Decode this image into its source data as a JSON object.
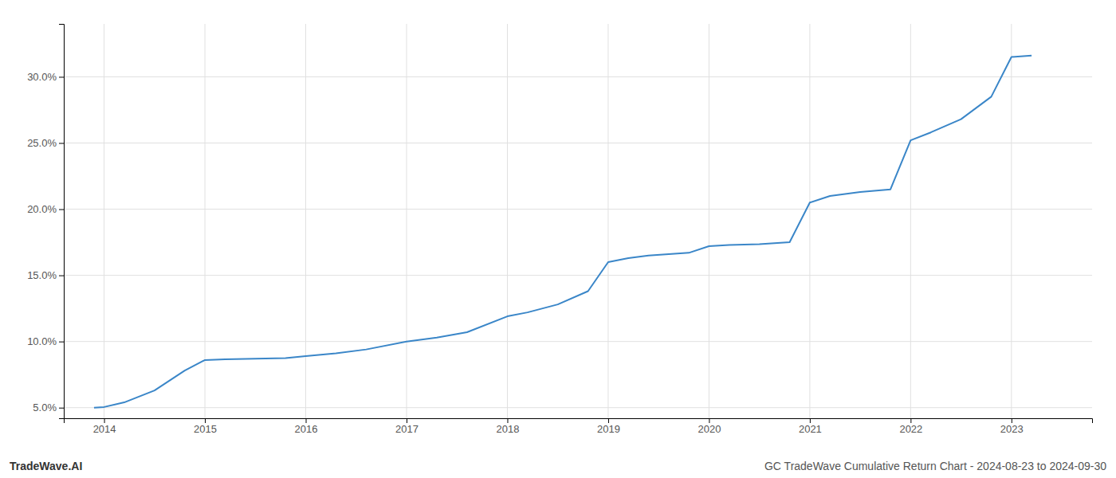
{
  "chart_data": {
    "type": "line",
    "x": [
      2013.9,
      2014.0,
      2014.2,
      2014.5,
      2014.8,
      2015.0,
      2015.2,
      2015.5,
      2015.8,
      2016.0,
      2016.3,
      2016.6,
      2017.0,
      2017.3,
      2017.6,
      2018.0,
      2018.2,
      2018.5,
      2018.8,
      2019.0,
      2019.2,
      2019.4,
      2019.6,
      2019.8,
      2020.0,
      2020.2,
      2020.5,
      2020.8,
      2021.0,
      2021.2,
      2021.5,
      2021.8,
      2022.0,
      2022.2,
      2022.5,
      2022.8,
      2023.0,
      2023.2
    ],
    "values": [
      5.0,
      5.05,
      5.4,
      6.3,
      7.8,
      8.6,
      8.65,
      8.7,
      8.75,
      8.9,
      9.1,
      9.4,
      10.0,
      10.3,
      10.7,
      11.9,
      12.2,
      12.8,
      13.8,
      16.0,
      16.3,
      16.5,
      16.6,
      16.7,
      17.2,
      17.3,
      17.35,
      17.5,
      20.5,
      21.0,
      21.3,
      21.5,
      25.2,
      25.8,
      26.8,
      28.5,
      31.5,
      31.6
    ],
    "color": "#3a86c8",
    "xlim": [
      2013.6,
      2023.8
    ],
    "xticks": [
      2014,
      2015,
      2016,
      2017,
      2018,
      2019,
      2020,
      2021,
      2022,
      2023
    ],
    "ylim": [
      4.2,
      34.0
    ],
    "yticks": [
      {
        "value": 5.0,
        "label": "5.0%"
      },
      {
        "value": 10.0,
        "label": "10.0%"
      },
      {
        "value": 15.0,
        "label": "15.0%"
      },
      {
        "value": 20.0,
        "label": "20.0%"
      },
      {
        "value": 25.0,
        "label": "25.0%"
      },
      {
        "value": 30.0,
        "label": "30.0%"
      }
    ],
    "grid": true,
    "annotations": [
      "TradeWave.AI",
      "GC TradeWave Cumulative Return Chart - 2024-08-23 to 2024-09-30"
    ]
  }
}
